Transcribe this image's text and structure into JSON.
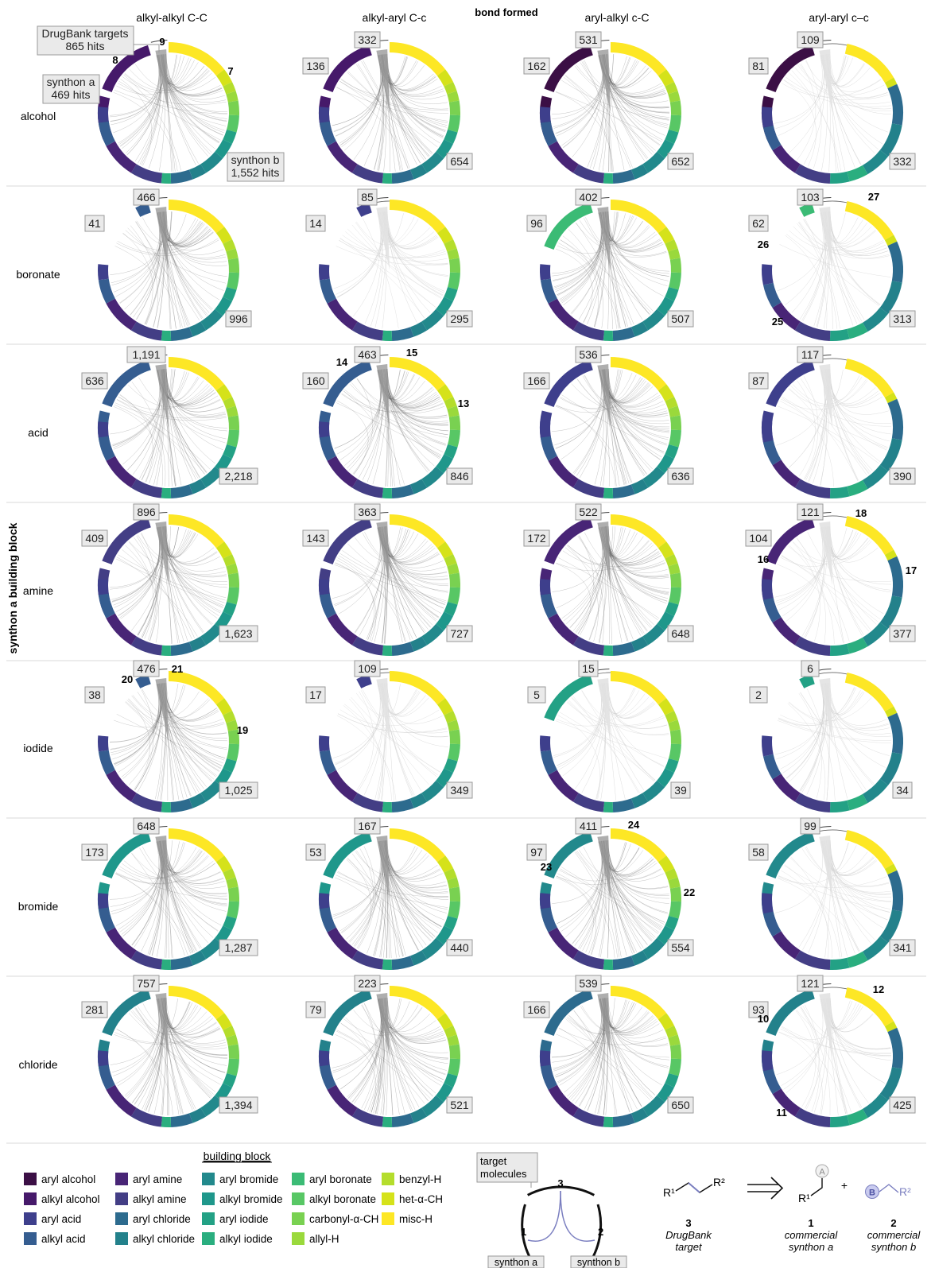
{
  "header": {
    "bond_formed": "bond formed",
    "columns": [
      "alkyl-alkyl C-C",
      "alkyl-aryl C-c",
      "aryl-alkyl c-C",
      "aryl-aryl c–c"
    ]
  },
  "axis": {
    "rows_title": "synthon a building block",
    "rows": [
      "alcohol",
      "boronate",
      "acid",
      "amine",
      "iodide",
      "bromide",
      "chloride"
    ]
  },
  "grid": [
    [
      {
        "a": "",
        "top": "",
        "b": ""
      },
      {
        "a": "136",
        "top": "332",
        "b": "654"
      },
      {
        "a": "162",
        "top": "531",
        "b": "652"
      },
      {
        "a": "81",
        "top": "109",
        "b": "332"
      }
    ],
    [
      {
        "a": "41",
        "top": "466",
        "b": "996"
      },
      {
        "a": "14",
        "top": "85",
        "b": "295"
      },
      {
        "a": "96",
        "top": "402",
        "b": "507"
      },
      {
        "a": "62",
        "top": "103",
        "b": "313"
      }
    ],
    [
      {
        "a": "636",
        "top": "1,191",
        "b": "2,218"
      },
      {
        "a": "160",
        "top": "463",
        "b": "846"
      },
      {
        "a": "166",
        "top": "536",
        "b": "636"
      },
      {
        "a": "87",
        "top": "117",
        "b": "390"
      }
    ],
    [
      {
        "a": "409",
        "top": "896",
        "b": "1,623"
      },
      {
        "a": "143",
        "top": "363",
        "b": "727"
      },
      {
        "a": "172",
        "top": "522",
        "b": "648"
      },
      {
        "a": "104",
        "top": "121",
        "b": "377"
      }
    ],
    [
      {
        "a": "38",
        "top": "476",
        "b": "1,025"
      },
      {
        "a": "17",
        "top": "109",
        "b": "349"
      },
      {
        "a": "5",
        "top": "15",
        "b": "39"
      },
      {
        "a": "2",
        "top": "6",
        "b": "34"
      }
    ],
    [
      {
        "a": "173",
        "top": "648",
        "b": "1,287"
      },
      {
        "a": "53",
        "top": "167",
        "b": "440"
      },
      {
        "a": "97",
        "top": "411",
        "b": "554"
      },
      {
        "a": "58",
        "top": "99",
        "b": "341"
      }
    ],
    [
      {
        "a": "281",
        "top": "757",
        "b": "1,394"
      },
      {
        "a": "79",
        "top": "223",
        "b": "521"
      },
      {
        "a": "166",
        "top": "539",
        "b": "650"
      },
      {
        "a": "93",
        "top": "121",
        "b": "425"
      }
    ]
  ],
  "first_cell_callouts": {
    "drugbank_line1": "DrugBank targets",
    "drugbank_line2": "865 hits",
    "synthon_a_line1": "synthon a",
    "synthon_a_line2": "469 hits",
    "synthon_b_line1": "synthon b",
    "synthon_b_line2": "1,552 hits"
  },
  "markers": [
    {
      "t": "9",
      "row": 0,
      "col": 0,
      "dx": -8,
      "dy": -85
    },
    {
      "t": "8",
      "row": 0,
      "col": 0,
      "dx": -67,
      "dy": -62
    },
    {
      "t": "7",
      "row": 0,
      "col": 0,
      "dx": 78,
      "dy": -48
    },
    {
      "t": "27",
      "row": 1,
      "col": 3,
      "dx": 52,
      "dy": -88
    },
    {
      "t": "26",
      "row": 1,
      "col": 3,
      "dx": -87,
      "dy": -28
    },
    {
      "t": "25",
      "row": 1,
      "col": 3,
      "dx": -69,
      "dy": 69
    },
    {
      "t": "14",
      "row": 2,
      "col": 1,
      "dx": -60,
      "dy": -78
    },
    {
      "t": "15",
      "row": 2,
      "col": 1,
      "dx": 28,
      "dy": -90
    },
    {
      "t": "13",
      "row": 2,
      "col": 1,
      "dx": 93,
      "dy": -26
    },
    {
      "t": "18",
      "row": 3,
      "col": 3,
      "dx": 36,
      "dy": -86
    },
    {
      "t": "16",
      "row": 3,
      "col": 3,
      "dx": -87,
      "dy": -28
    },
    {
      "t": "17",
      "row": 3,
      "col": 3,
      "dx": 99,
      "dy": -14
    },
    {
      "t": "20",
      "row": 4,
      "col": 0,
      "dx": -52,
      "dy": -74
    },
    {
      "t": "21",
      "row": 4,
      "col": 0,
      "dx": 11,
      "dy": -87
    },
    {
      "t": "19",
      "row": 4,
      "col": 0,
      "dx": 93,
      "dy": -10
    },
    {
      "t": "24",
      "row": 5,
      "col": 2,
      "dx": 29,
      "dy": -89
    },
    {
      "t": "23",
      "row": 5,
      "col": 2,
      "dx": -81,
      "dy": -36
    },
    {
      "t": "22",
      "row": 5,
      "col": 2,
      "dx": 99,
      "dy": -4
    },
    {
      "t": "12",
      "row": 6,
      "col": 3,
      "dx": 58,
      "dy": -80
    },
    {
      "t": "10",
      "row": 6,
      "col": 3,
      "dx": -87,
      "dy": -43
    },
    {
      "t": "11",
      "row": 6,
      "col": 3,
      "dx": -64,
      "dy": 75
    }
  ],
  "legend": {
    "title": "building block",
    "items": [
      {
        "label": "aryl alcohol",
        "color": "#3b0f45"
      },
      {
        "label": "alkyl alcohol",
        "color": "#46196a"
      },
      {
        "label": "aryl acid",
        "color": "#3e3f8c"
      },
      {
        "label": "alkyl acid",
        "color": "#355d90"
      },
      {
        "label": "aryl amine",
        "color": "#482576"
      },
      {
        "label": "alkyl amine",
        "color": "#433e85"
      },
      {
        "label": "aryl chloride",
        "color": "#2d6b8e"
      },
      {
        "label": "alkyl chloride",
        "color": "#23818b"
      },
      {
        "label": "aryl bromide",
        "color": "#22898c"
      },
      {
        "label": "alkyl bromide",
        "color": "#1f978b"
      },
      {
        "label": "aryl iodide",
        "color": "#23a185"
      },
      {
        "label": "alkyl iodide",
        "color": "#2aae7f"
      },
      {
        "label": "aryl boronate",
        "color": "#3bbb75"
      },
      {
        "label": "alkyl boronate",
        "color": "#58c765"
      },
      {
        "label": "carbonyl-α-CH",
        "color": "#79d151"
      },
      {
        "label": "allyl-H",
        "color": "#9ad93c"
      },
      {
        "label": "benzyl-H",
        "color": "#b4dd2c"
      },
      {
        "label": "het-α-CH",
        "color": "#d5e21a"
      },
      {
        "label": "misc-H",
        "color": "#fde725"
      }
    ]
  },
  "schematic": {
    "target_line1": "target",
    "target_line2": "molecules",
    "n3": "3",
    "n1": "1",
    "n2": "2",
    "synthon_a": "synthon a",
    "synthon_b": "synthon b"
  },
  "reaction": {
    "r1": "R¹",
    "r2": "R²",
    "atom_a": "A",
    "atom_b": "B",
    "plus": "+",
    "c3_num": "3",
    "c3_l1": "DrugBank",
    "c3_l2": "target",
    "c1_num": "1",
    "c1_l1": "commercial",
    "c1_l2": "synthon a",
    "c2_num": "2",
    "c2_l1": "commercial",
    "c2_l2": "synthon b"
  },
  "colors": {
    "dark_chord": "#555555",
    "light_chord": "#cccccc",
    "box_fill": "#eaeaea",
    "box_stroke": "#9a9a9a",
    "reaction_accent": "#7b7fc0"
  }
}
